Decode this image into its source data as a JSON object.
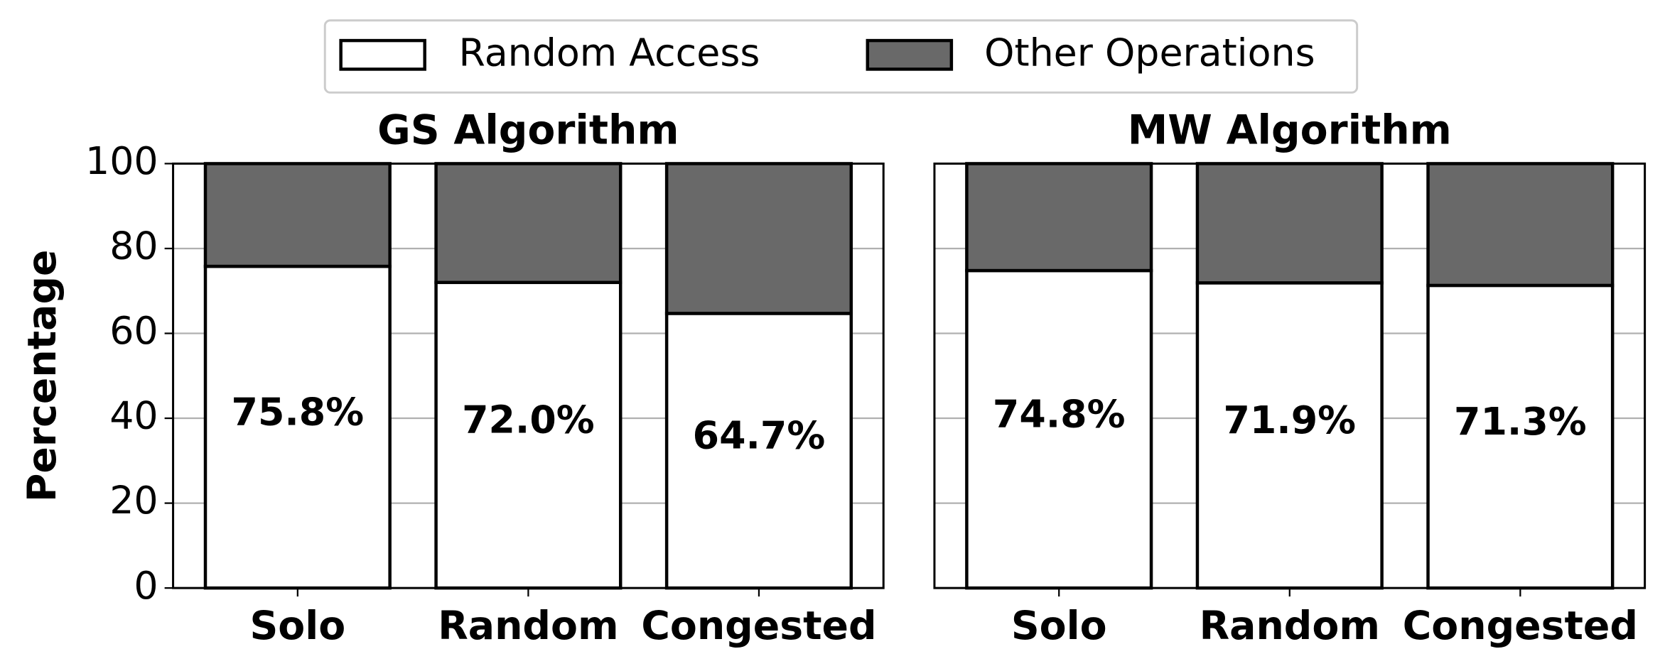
{
  "chart_data": [
    {
      "type": "stacked-bar",
      "title": "GS Algorithm",
      "y_label": "Percentage",
      "categories": [
        "Solo",
        "Random",
        "Congested"
      ],
      "series": [
        {
          "name": "Random Access",
          "color": "#ffffff",
          "values": [
            75.8,
            72.0,
            64.7
          ],
          "value_labels": [
            "75.8%",
            "72.0%",
            "64.7%"
          ]
        },
        {
          "name": "Other Operations",
          "color": "#696969",
          "values": [
            24.2,
            28.0,
            35.3
          ]
        }
      ],
      "ylim": [
        0,
        100
      ],
      "yticks": [
        0,
        20,
        40,
        60,
        80,
        100
      ],
      "grid": true
    },
    {
      "type": "stacked-bar",
      "title": "MW Algorithm",
      "categories": [
        "Solo",
        "Random",
        "Congested"
      ],
      "series": [
        {
          "name": "Random Access",
          "color": "#ffffff",
          "values": [
            74.8,
            71.9,
            71.3
          ],
          "value_labels": [
            "74.8%",
            "71.9%",
            "71.3%"
          ]
        },
        {
          "name": "Other Operations",
          "color": "#696969",
          "values": [
            25.2,
            28.1,
            28.7
          ]
        }
      ],
      "ylim": [
        0,
        100
      ],
      "yticks": [
        0,
        20,
        40,
        60,
        80,
        100
      ],
      "grid": true
    }
  ]
}
